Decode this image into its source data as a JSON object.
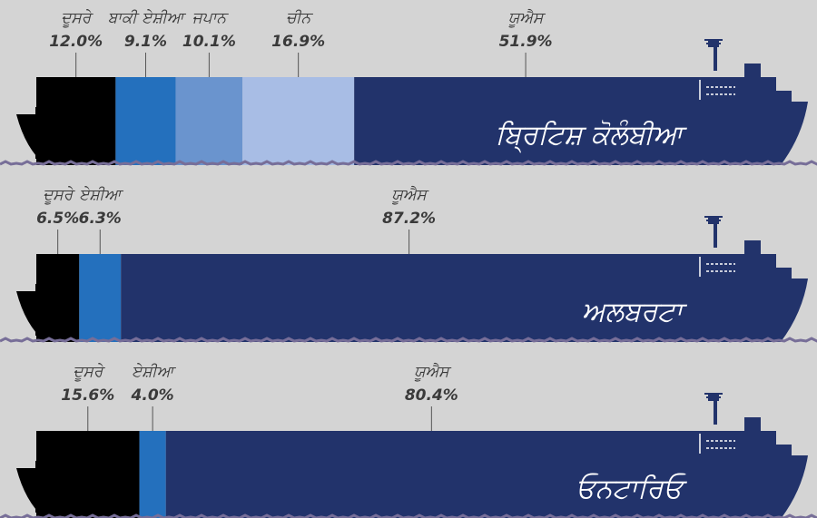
{
  "chart_data": [
    {
      "type": "stacked-bar",
      "title": "ਬ੍ਰਿਟਿਸ਼ ਕੋਲੰਬੀਆ",
      "series": [
        {
          "name": "ਦੂਸਰੇ",
          "color": "#000000",
          "values": [
            12.0
          ],
          "value_labels": [
            "12.0%"
          ]
        },
        {
          "name": "ਬਾਕੀ ਏਸ਼ੀਆ",
          "color": "#2470bd",
          "values": [
            9.1
          ],
          "value_labels": [
            "9.1%"
          ]
        },
        {
          "name": "ਜਪਾਨ",
          "color": "#6a94ce",
          "values": [
            10.1
          ],
          "value_labels": [
            "10.1%"
          ]
        },
        {
          "name": "ਚੀਨ",
          "color": "#a8bde5",
          "values": [
            16.9
          ],
          "value_labels": [
            "16.9%"
          ]
        },
        {
          "name": "ਯੂਐਸ",
          "color": "#22336b",
          "values": [
            51.9
          ],
          "value_labels": [
            "51.9%"
          ]
        }
      ]
    },
    {
      "type": "stacked-bar",
      "title": "ਅਲਬਰਟਾ",
      "series": [
        {
          "name": "ਦੂਸਰੇ",
          "color": "#000000",
          "values": [
            6.5
          ],
          "value_labels": [
            "6.5%"
          ]
        },
        {
          "name": "ਏਸ਼ੀਆ",
          "color": "#2470bd",
          "values": [
            6.3
          ],
          "value_labels": [
            "6.3%"
          ]
        },
        {
          "name": "ਯੂਐਸ",
          "color": "#22336b",
          "values": [
            87.2
          ],
          "value_labels": [
            "87.2%"
          ]
        }
      ]
    },
    {
      "type": "stacked-bar",
      "title": "ਓਨਟਾਰਿਓ",
      "series": [
        {
          "name": "ਦੂਸਰੇ",
          "color": "#000000",
          "values": [
            15.6
          ],
          "value_labels": [
            "15.6%"
          ]
        },
        {
          "name": "ਏਸ਼ੀਆ",
          "color": "#2470bd",
          "values": [
            4.0
          ],
          "value_labels": [
            "4.0%"
          ]
        },
        {
          "name": "ਯੂਐਸ",
          "color": "#22336b",
          "values": [
            80.4
          ],
          "value_labels": [
            "80.4%"
          ]
        }
      ]
    }
  ]
}
